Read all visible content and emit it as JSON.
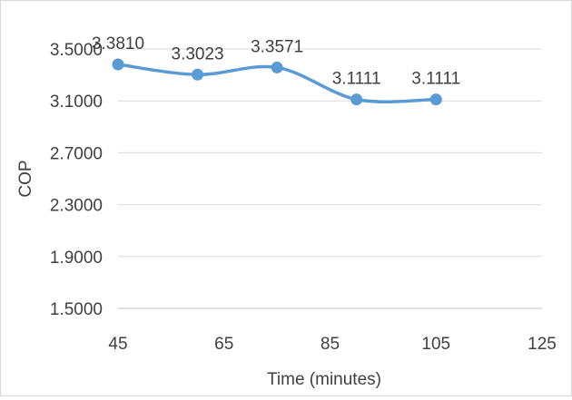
{
  "chart_data": {
    "type": "line",
    "title": "",
    "xlabel": "Time (minutes)",
    "ylabel": "COP",
    "xlim": [
      45,
      125
    ],
    "ylim": [
      1.5,
      3.5
    ],
    "x_ticks": [
      45,
      65,
      85,
      105,
      125
    ],
    "x_tick_labels": [
      "45",
      "65",
      "85",
      "105",
      "125"
    ],
    "y_ticks": [
      1.5,
      1.9,
      2.3,
      2.7,
      3.1,
      3.5
    ],
    "y_tick_labels": [
      "1.5000",
      "1.9000",
      "2.3000",
      "2.7000",
      "3.1000",
      "3.5000"
    ],
    "grid": "horizontal",
    "legend": "none",
    "smooth": true,
    "series": [
      {
        "color": "#5b9bd5",
        "points": [
          {
            "x": 45,
            "y": 3.381,
            "label": "3.3810"
          },
          {
            "x": 60,
            "y": 3.3023,
            "label": "3.3023"
          },
          {
            "x": 75,
            "y": 3.3571,
            "label": "3.3571"
          },
          {
            "x": 90,
            "y": 3.1111,
            "label": "3.1111"
          },
          {
            "x": 105,
            "y": 3.1111,
            "label": "3.1111"
          }
        ]
      }
    ],
    "colors": {
      "gridline": "#d9d9d9",
      "axis": "#bfbfbf",
      "text": "#404040"
    }
  }
}
